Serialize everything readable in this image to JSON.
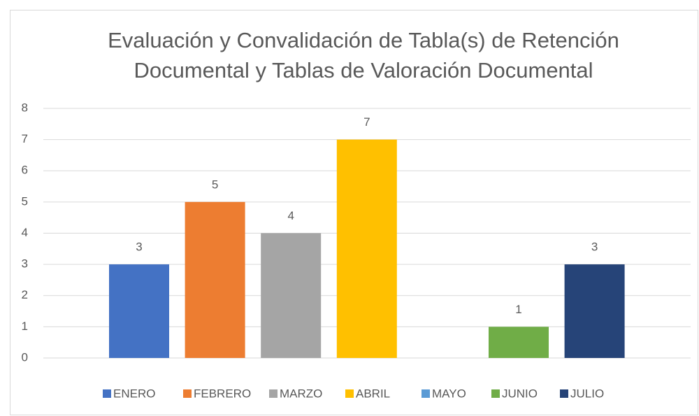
{
  "chart_data": {
    "type": "bar",
    "title": [
      "Evaluación y Convalidación de Tabla(s) de Retención",
      "Documental y Tablas de Valoración Documental"
    ],
    "categories": [
      null
    ],
    "series": [
      {
        "name": "ENERO",
        "color": "#4472c4",
        "values": [
          3
        ]
      },
      {
        "name": "FEBRERO",
        "color": "#ed7d31",
        "values": [
          5
        ]
      },
      {
        "name": "MARZO",
        "color": "#a5a5a5",
        "values": [
          4
        ]
      },
      {
        "name": "ABRIL",
        "color": "#ffc000",
        "values": [
          7
        ]
      },
      {
        "name": "MAYO",
        "color": "#5b9bd5",
        "values": [
          null
        ]
      },
      {
        "name": "JUNIO",
        "color": "#70ad47",
        "values": [
          1
        ]
      },
      {
        "name": "JULIO",
        "color": "#264478",
        "values": [
          3
        ]
      }
    ],
    "ylim": [
      0,
      8
    ],
    "yticks": [
      0,
      1,
      2,
      3,
      4,
      5,
      6,
      7,
      8
    ],
    "grid": true,
    "legend": "bottom",
    "data_labels": true
  }
}
